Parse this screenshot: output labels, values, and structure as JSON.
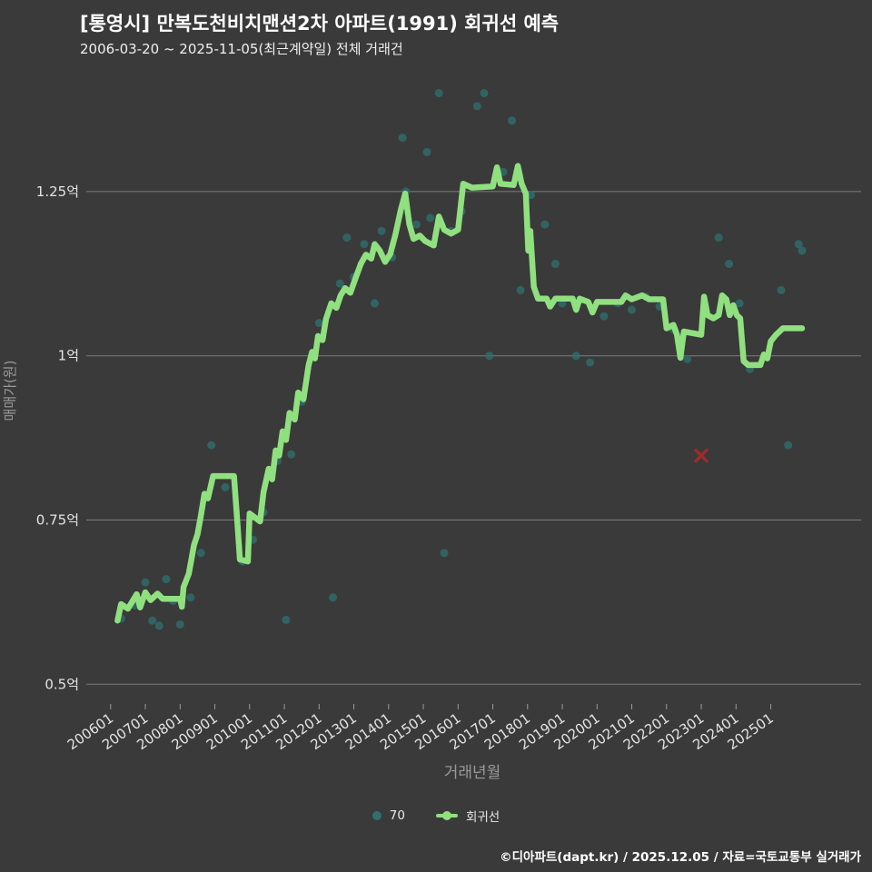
{
  "header": {
    "title": "[통영시] 만복도천비치맨션2차 아파트(1991) 회귀선 예측",
    "subtitle": "2006-03-20 ~ 2025-11-05(최근계약일) 전체 거래건"
  },
  "footer": {
    "credit": "©디아파트(dapt.kr) / 2025.12.05 / 자료=국토교통부 실거래가"
  },
  "legend": {
    "items": [
      {
        "label": "70",
        "color": "#2f7070",
        "marker": "dot"
      },
      {
        "label": "회귀선",
        "color": "#90e080",
        "marker": "line"
      }
    ]
  },
  "chart_data": {
    "type": "scatter",
    "title": "[통영시] 만복도천비치맨션2차 아파트(1991) 회귀선 예측",
    "subtitle": "2006-03-20 ~ 2025-11-05(최근계약일) 전체 거래건",
    "xlabel": "거래년월",
    "ylabel": "매매가(원)",
    "unit": "억원",
    "grid": "horizontal",
    "legend_position": "bottom-center",
    "xlim": [
      2005.3,
      2027.6
    ],
    "ylim": [
      0.47,
      1.42
    ],
    "y_ticks": [
      {
        "label": "1.25억",
        "value": 1.25
      },
      {
        "label": "1억",
        "value": 1.0
      },
      {
        "label": "0.75억",
        "value": 0.75
      },
      {
        "label": "0.5억",
        "value": 0.5
      }
    ],
    "x_ticks": [
      [
        "200601",
        2006
      ],
      [
        "200701",
        2007
      ],
      [
        "200801",
        2008
      ],
      [
        "200901",
        2009
      ],
      [
        "201001",
        2010
      ],
      [
        "201101",
        2011
      ],
      [
        "201201",
        2012
      ],
      [
        "201301",
        2013
      ],
      [
        "201401",
        2014
      ],
      [
        "201501",
        2015
      ],
      [
        "201601",
        2016
      ],
      [
        "201701",
        2017
      ],
      [
        "201801",
        2018
      ],
      [
        "201901",
        2019
      ],
      [
        "202001",
        2020
      ],
      [
        "202101",
        2021
      ],
      [
        "202201",
        2022
      ],
      [
        "202301",
        2023
      ],
      [
        "202401",
        2024
      ],
      [
        "202501",
        2025
      ]
    ],
    "series": [
      {
        "name": "70",
        "type": "scatter",
        "color": "#2f7070",
        "opacity": 0.78,
        "points": [
          [
            2006.3,
            0.6
          ],
          [
            2006.7,
            0.62
          ],
          [
            2007.0,
            0.655
          ],
          [
            2007.2,
            0.597
          ],
          [
            2007.4,
            0.589
          ],
          [
            2007.6,
            0.66
          ],
          [
            2007.8,
            0.627
          ],
          [
            2008.0,
            0.591
          ],
          [
            2008.3,
            0.632
          ],
          [
            2008.6,
            0.7
          ],
          [
            2008.9,
            0.864
          ],
          [
            2009.3,
            0.8
          ],
          [
            2009.8,
            0.687
          ],
          [
            2010.1,
            0.72
          ],
          [
            2010.4,
            0.762
          ],
          [
            2010.8,
            0.84
          ],
          [
            2011.05,
            0.598
          ],
          [
            2011.2,
            0.85
          ],
          [
            2011.5,
            0.93
          ],
          [
            2011.8,
            1.0
          ],
          [
            2012.0,
            1.05
          ],
          [
            2012.4,
            0.632
          ],
          [
            2012.6,
            1.11
          ],
          [
            2012.8,
            1.18
          ],
          [
            2013.0,
            1.12
          ],
          [
            2013.3,
            1.17
          ],
          [
            2013.6,
            1.08
          ],
          [
            2013.8,
            1.19
          ],
          [
            2014.1,
            1.15
          ],
          [
            2014.4,
            1.332
          ],
          [
            2014.5,
            1.25
          ],
          [
            2014.8,
            1.2
          ],
          [
            2015.1,
            1.31
          ],
          [
            2015.2,
            1.21
          ],
          [
            2015.45,
            1.4
          ],
          [
            2015.6,
            0.7
          ],
          [
            2015.8,
            1.19
          ],
          [
            2016.1,
            1.22
          ],
          [
            2016.55,
            1.38
          ],
          [
            2016.75,
            1.4
          ],
          [
            2016.9,
            1.0
          ],
          [
            2017.3,
            1.28
          ],
          [
            2017.55,
            1.358
          ],
          [
            2017.8,
            1.1
          ],
          [
            2018.1,
            1.245
          ],
          [
            2018.5,
            1.2
          ],
          [
            2018.8,
            1.14
          ],
          [
            2019.0,
            1.08
          ],
          [
            2019.4,
            1.0
          ],
          [
            2019.8,
            0.99
          ],
          [
            2020.2,
            1.06
          ],
          [
            2020.6,
            1.08
          ],
          [
            2021.0,
            1.07
          ],
          [
            2021.4,
            1.09
          ],
          [
            2021.8,
            1.075
          ],
          [
            2022.2,
            1.04
          ],
          [
            2022.6,
            0.995
          ],
          [
            2023.5,
            1.18
          ],
          [
            2023.8,
            1.14
          ],
          [
            2024.1,
            1.08
          ],
          [
            2024.4,
            0.98
          ],
          [
            2024.9,
            1.0
          ],
          [
            2025.3,
            1.1
          ],
          [
            2025.5,
            0.864
          ],
          [
            2025.8,
            1.17
          ],
          [
            2025.9,
            1.16
          ]
        ]
      },
      {
        "name": "회귀선",
        "type": "line",
        "color": "#90e080",
        "width": 6.5,
        "points": [
          [
            2006.2,
            0.597
          ],
          [
            2006.3,
            0.622
          ],
          [
            2006.5,
            0.615
          ],
          [
            2006.75,
            0.637
          ],
          [
            2006.85,
            0.617
          ],
          [
            2007.0,
            0.64
          ],
          [
            2007.15,
            0.628
          ],
          [
            2007.35,
            0.638
          ],
          [
            2007.5,
            0.63
          ],
          [
            2008.0,
            0.63
          ],
          [
            2008.05,
            0.618
          ],
          [
            2008.1,
            0.648
          ],
          [
            2008.25,
            0.668
          ],
          [
            2008.4,
            0.712
          ],
          [
            2008.5,
            0.728
          ],
          [
            2008.6,
            0.757
          ],
          [
            2008.7,
            0.79
          ],
          [
            2008.8,
            0.783
          ],
          [
            2008.95,
            0.817
          ],
          [
            2009.55,
            0.817
          ],
          [
            2009.65,
            0.745
          ],
          [
            2009.72,
            0.69
          ],
          [
            2009.95,
            0.687
          ],
          [
            2010.0,
            0.76
          ],
          [
            2010.15,
            0.754
          ],
          [
            2010.3,
            0.748
          ],
          [
            2010.4,
            0.792
          ],
          [
            2010.55,
            0.828
          ],
          [
            2010.65,
            0.812
          ],
          [
            2010.75,
            0.856
          ],
          [
            2010.85,
            0.848
          ],
          [
            2010.95,
            0.885
          ],
          [
            2011.05,
            0.872
          ],
          [
            2011.15,
            0.913
          ],
          [
            2011.3,
            0.903
          ],
          [
            2011.4,
            0.944
          ],
          [
            2011.55,
            0.934
          ],
          [
            2011.7,
            0.986
          ],
          [
            2011.8,
            1.006
          ],
          [
            2011.88,
            0.996
          ],
          [
            2011.97,
            1.03
          ],
          [
            2012.1,
            1.024
          ],
          [
            2012.2,
            1.056
          ],
          [
            2012.35,
            1.08
          ],
          [
            2012.5,
            1.073
          ],
          [
            2012.62,
            1.092
          ],
          [
            2012.75,
            1.103
          ],
          [
            2012.9,
            1.096
          ],
          [
            2013.05,
            1.118
          ],
          [
            2013.2,
            1.14
          ],
          [
            2013.35,
            1.154
          ],
          [
            2013.5,
            1.148
          ],
          [
            2013.6,
            1.17
          ],
          [
            2013.75,
            1.16
          ],
          [
            2013.9,
            1.143
          ],
          [
            2014.05,
            1.155
          ],
          [
            2014.2,
            1.185
          ],
          [
            2014.35,
            1.222
          ],
          [
            2014.48,
            1.247
          ],
          [
            2014.6,
            1.2
          ],
          [
            2014.72,
            1.178
          ],
          [
            2014.9,
            1.183
          ],
          [
            2015.05,
            1.175
          ],
          [
            2015.3,
            1.168
          ],
          [
            2015.45,
            1.212
          ],
          [
            2015.6,
            1.192
          ],
          [
            2015.8,
            1.186
          ],
          [
            2016.0,
            1.192
          ],
          [
            2016.15,
            1.262
          ],
          [
            2016.4,
            1.256
          ],
          [
            2017.0,
            1.258
          ],
          [
            2017.12,
            1.287
          ],
          [
            2017.22,
            1.262
          ],
          [
            2017.6,
            1.26
          ],
          [
            2017.72,
            1.289
          ],
          [
            2017.83,
            1.262
          ],
          [
            2017.95,
            1.247
          ],
          [
            2018.02,
            1.16
          ],
          [
            2018.08,
            1.19
          ],
          [
            2018.18,
            1.105
          ],
          [
            2018.3,
            1.087
          ],
          [
            2018.55,
            1.087
          ],
          [
            2018.65,
            1.075
          ],
          [
            2018.8,
            1.087
          ],
          [
            2019.3,
            1.087
          ],
          [
            2019.4,
            1.07
          ],
          [
            2019.5,
            1.087
          ],
          [
            2019.75,
            1.082
          ],
          [
            2019.87,
            1.066
          ],
          [
            2020.0,
            1.082
          ],
          [
            2020.7,
            1.082
          ],
          [
            2020.82,
            1.092
          ],
          [
            2021.0,
            1.086
          ],
          [
            2021.3,
            1.092
          ],
          [
            2021.5,
            1.086
          ],
          [
            2021.9,
            1.086
          ],
          [
            2022.0,
            1.042
          ],
          [
            2022.2,
            1.047
          ],
          [
            2022.3,
            1.032
          ],
          [
            2022.4,
            0.997
          ],
          [
            2022.5,
            1.037
          ],
          [
            2023.0,
            1.032
          ],
          [
            2023.08,
            1.09
          ],
          [
            2023.18,
            1.062
          ],
          [
            2023.35,
            1.057
          ],
          [
            2023.5,
            1.062
          ],
          [
            2023.6,
            1.092
          ],
          [
            2023.72,
            1.086
          ],
          [
            2023.82,
            1.062
          ],
          [
            2023.92,
            1.077
          ],
          [
            2024.02,
            1.062
          ],
          [
            2024.12,
            1.057
          ],
          [
            2024.22,
            0.992
          ],
          [
            2024.35,
            0.986
          ],
          [
            2024.7,
            0.986
          ],
          [
            2024.8,
            1.002
          ],
          [
            2024.9,
            0.996
          ],
          [
            2025.0,
            1.022
          ],
          [
            2025.15,
            1.032
          ],
          [
            2025.35,
            1.042
          ],
          [
            2025.9,
            1.042
          ]
        ]
      }
    ],
    "outlier_marker": {
      "type": "x",
      "color": "#9b2c2c",
      "point": [
        2023.0,
        0.848
      ]
    },
    "colors": {
      "background": "#3a3a3a",
      "gridline": "#7d7d7d",
      "tick_label": "#e4e4e4",
      "axis_title": "#9a9a9a"
    }
  }
}
